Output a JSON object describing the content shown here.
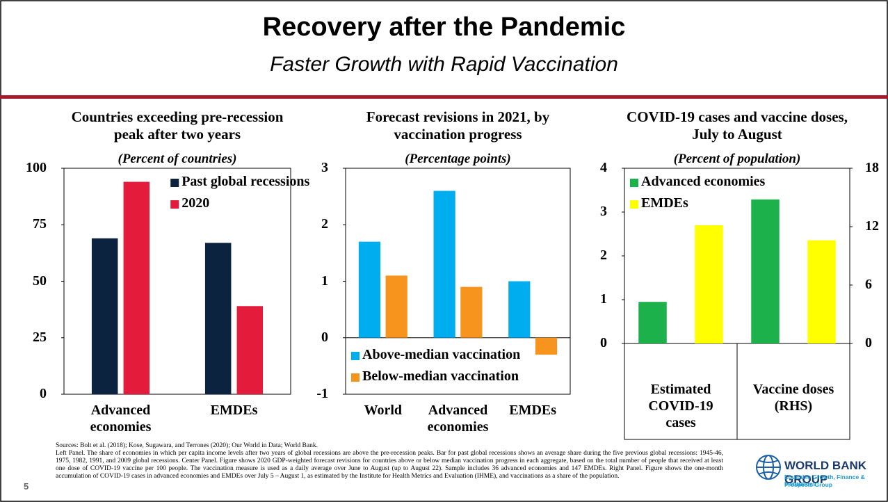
{
  "slide": {
    "title": "Recovery after the Pandemic",
    "subtitle": "Faster Growth with Rapid Vaccination",
    "sources": "Sources: Bolt et al. (2018); Kose, Sugawara, and Terrones (2020); Our World in Data; World Bank.",
    "note": "Left Panel. The share of economies in which per capita income levels after two years of global recessions are above the pre-recession peaks. Bar for past global recessions shows an average share during the five previous global recessions: 1945-46, 1975, 1982, 1991, and 2009 global recessions. Center Panel. Figure shows 2020 GDP-weighted forecast revisions for countries above or below median vaccination progress in each aggregate, based on the total number of people that received at least one dose of COVID-19 vaccine per 100 people. The vaccination measure is used as a daily average over June to August (up to August 22). Sample includes 36 advanced economies and 147 EMDEs. Right Panel. Figure shows the one-month accumulation of COVID-19 cases in advanced economies and EMDEs over July 5 – August 1, as estimated by the Institute for Health Metrics and Evaluation (IHME), and vaccinations as a share of the population.",
    "page_number": "5",
    "logo": {
      "name": "WORLD BANK GROUP",
      "line1": "Equitable Growth, Finance & Institutions",
      "line2": "Prospects Group"
    }
  },
  "chart_data": [
    {
      "type": "bar",
      "title": "Countries exceeding pre-recession peak after two years",
      "subtitle": "(Percent of countries)",
      "categories": [
        "Advanced economies",
        "EMDEs"
      ],
      "series": [
        {
          "name": "Past global recessions",
          "color": "#0c2340",
          "values": [
            69,
            67
          ]
        },
        {
          "name": "2020",
          "color": "#e31c3c",
          "values": [
            94,
            39
          ]
        }
      ],
      "ylim": [
        0,
        100
      ],
      "yticks": [
        0,
        25,
        50,
        75,
        100
      ],
      "legend": "upper right"
    },
    {
      "type": "bar",
      "title": "Forecast revisions in 2021, by vaccination progress",
      "subtitle": "(Percentage points)",
      "categories": [
        "World",
        "Advanced economies",
        "EMDEs"
      ],
      "series": [
        {
          "name": "Above-median vaccination",
          "color": "#00aeef",
          "values": [
            1.7,
            2.6,
            1.0
          ]
        },
        {
          "name": "Below-median vaccination",
          "color": "#f7941d",
          "values": [
            1.1,
            0.9,
            -0.3
          ]
        }
      ],
      "ylim": [
        -1,
        3
      ],
      "yticks": [
        -1,
        0,
        1,
        2,
        3
      ],
      "legend": "lower left"
    },
    {
      "type": "bar",
      "title": "COVID-19 cases and vaccine doses, July to August",
      "subtitle": "(Percent of population)",
      "categories": [
        "Estimated COVID-19 cases",
        "Vaccine doses (RHS)"
      ],
      "category_axes": [
        "y",
        "y2"
      ],
      "series": [
        {
          "name": "Advanced economies",
          "color": "#1db14b",
          "values": [
            0.95,
            14.8
          ]
        },
        {
          "name": "EMDEs",
          "color": "#ffff00",
          "values": [
            2.7,
            10.6
          ]
        }
      ],
      "ylim": [
        0,
        4
      ],
      "yticks": [
        0,
        1,
        2,
        3,
        4
      ],
      "y2lim": [
        0,
        18
      ],
      "y2ticks": [
        0,
        6,
        12,
        18
      ],
      "legend": "upper left"
    }
  ]
}
